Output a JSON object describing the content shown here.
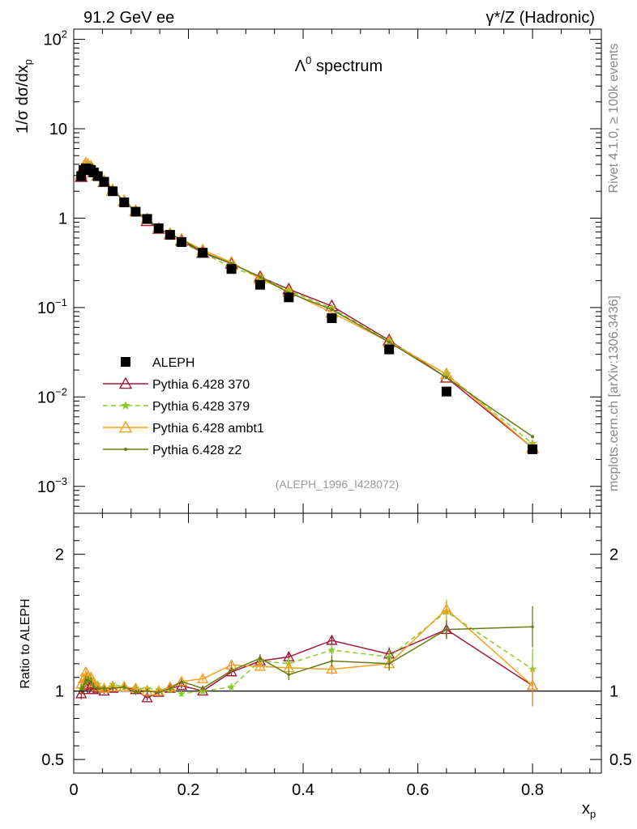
{
  "header": {
    "left": "91.2 GeV ee",
    "right": "γ*/Z (Hadronic)"
  },
  "side": {
    "rivet": "Rivet 4.1.0, ≥ 100k events",
    "mcplots": "mcplots.cern.ch [arXiv:1306.3436]"
  },
  "chart_data": {
    "type": "line",
    "title": "Λ⁰ spectrum",
    "title_base": "Λ",
    "title_sup": "0",
    "title_rest": " spectrum",
    "analysis_id": "(ALEPH_1996_I428072)",
    "xlabel": "x",
    "xlabel_sub": "p",
    "ylabel": "1/σ  dσ/dx",
    "ylabel_sub": "p",
    "ratio_ylabel": "Ratio to ALEPH",
    "xlim": [
      0,
      0.92
    ],
    "ylim": [
      0.0005,
      130
    ],
    "ratio_ylim": [
      0.4,
      2.3
    ],
    "yscale": "log",
    "x_ticks": [
      {
        "v": 0,
        "label": "0"
      },
      {
        "v": 0.2,
        "label": "0.2"
      },
      {
        "v": 0.4,
        "label": "0.4"
      },
      {
        "v": 0.6,
        "label": "0.6"
      },
      {
        "v": 0.8,
        "label": "0.8"
      }
    ],
    "y_ticks": [
      {
        "v": 0.001,
        "base": "10",
        "exp": "−3"
      },
      {
        "v": 0.01,
        "base": "10",
        "exp": "−2"
      },
      {
        "v": 0.1,
        "base": "10",
        "exp": "−1"
      },
      {
        "v": 1,
        "base": "1",
        "exp": ""
      },
      {
        "v": 10,
        "base": "10",
        "exp": ""
      },
      {
        "v": 100,
        "base": "10",
        "exp": "2"
      }
    ],
    "ratio_ticks": [
      {
        "v": 0.5,
        "label": "0.5"
      },
      {
        "v": 1,
        "label": "1"
      },
      {
        "v": 2,
        "label": "2"
      }
    ],
    "x": [
      0.013,
      0.017,
      0.021,
      0.025,
      0.03,
      0.035,
      0.042,
      0.053,
      0.068,
      0.088,
      0.108,
      0.128,
      0.148,
      0.168,
      0.188,
      0.225,
      0.275,
      0.325,
      0.375,
      0.45,
      0.55,
      0.65,
      0.8
    ],
    "series": [
      {
        "name": "ALEPH",
        "color": "#000000",
        "marker": "square",
        "values": [
          2.95,
          3.45,
          3.6,
          3.55,
          3.45,
          3.25,
          2.95,
          2.55,
          2.0,
          1.5,
          1.18,
          0.98,
          0.77,
          0.65,
          0.54,
          0.41,
          0.27,
          0.18,
          0.13,
          0.076,
          0.034,
          0.0115,
          0.0026
        ]
      },
      {
        "name": "Pythia 6.428 370",
        "color": "#a01c38",
        "marker": "triangle",
        "dash": "",
        "values": [
          2.9,
          3.5,
          3.8,
          3.7,
          3.6,
          3.3,
          3.0,
          2.55,
          2.05,
          1.55,
          1.2,
          0.93,
          0.76,
          0.66,
          0.56,
          0.41,
          0.31,
          0.22,
          0.16,
          0.104,
          0.043,
          0.0165,
          0.0027
        ]
      },
      {
        "name": "Pythia 6.428 379",
        "color": "#8ccc2a",
        "marker": "star",
        "dash": "6,4",
        "values": [
          3.0,
          3.6,
          4.0,
          3.9,
          3.75,
          3.45,
          3.1,
          2.6,
          2.1,
          1.55,
          1.2,
          1.0,
          0.78,
          0.66,
          0.53,
          0.41,
          0.28,
          0.22,
          0.155,
          0.098,
          0.042,
          0.018,
          0.003
        ]
      },
      {
        "name": "Pythia 6.428 ambt1",
        "color": "#f0a020",
        "marker": "triangle",
        "dash": "",
        "values": [
          3.1,
          3.75,
          4.1,
          3.95,
          3.8,
          3.45,
          3.05,
          2.6,
          2.05,
          1.55,
          1.2,
          0.98,
          0.77,
          0.67,
          0.58,
          0.44,
          0.32,
          0.21,
          0.15,
          0.088,
          0.041,
          0.018,
          0.0027
        ]
      },
      {
        "name": "Pythia 6.428 z2",
        "color": "#6b7a14",
        "marker": "dot",
        "dash": "",
        "values": [
          3.0,
          3.55,
          3.9,
          3.85,
          3.7,
          3.35,
          3.0,
          2.6,
          2.05,
          1.55,
          1.17,
          0.98,
          0.76,
          0.66,
          0.58,
          0.42,
          0.31,
          0.22,
          0.146,
          0.095,
          0.041,
          0.0165,
          0.0036
        ]
      }
    ],
    "ratios": [
      [
        0.98,
        1.01,
        1.05,
        1.04,
        1.04,
        1.01,
        1.02,
        1.0,
        1.02,
        1.03,
        1.01,
        0.95,
        0.99,
        1.02,
        1.04,
        1.0,
        1.14,
        1.22,
        1.25,
        1.37,
        1.27,
        1.45,
        1.04
      ],
      [
        1.02,
        1.04,
        1.11,
        1.1,
        1.09,
        1.06,
        1.05,
        1.02,
        1.05,
        1.03,
        1.02,
        1.02,
        1.01,
        1.01,
        0.98,
        1.0,
        1.03,
        1.22,
        1.2,
        1.3,
        1.25,
        1.58,
        1.16
      ],
      [
        1.05,
        1.09,
        1.14,
        1.11,
        1.1,
        1.06,
        1.03,
        1.02,
        1.03,
        1.03,
        1.02,
        1.0,
        1.0,
        1.03,
        1.07,
        1.09,
        1.19,
        1.18,
        1.17,
        1.16,
        1.2,
        1.6,
        1.04
      ],
      [
        1.01,
        1.03,
        1.08,
        1.08,
        1.07,
        1.03,
        1.02,
        1.02,
        1.02,
        1.03,
        0.99,
        1.0,
        0.99,
        1.02,
        1.07,
        1.02,
        1.15,
        1.24,
        1.12,
        1.22,
        1.2,
        1.45,
        1.47
      ]
    ],
    "ratio_errors": [
      0.04,
      0.03,
      0.03,
      0.03,
      0.03,
      0.03,
      0.02,
      0.02,
      0.02,
      0.02,
      0.02,
      0.02,
      0.02,
      0.02,
      0.02,
      0.02,
      0.03,
      0.03,
      0.04,
      0.04,
      0.05,
      0.07,
      0.15
    ]
  }
}
